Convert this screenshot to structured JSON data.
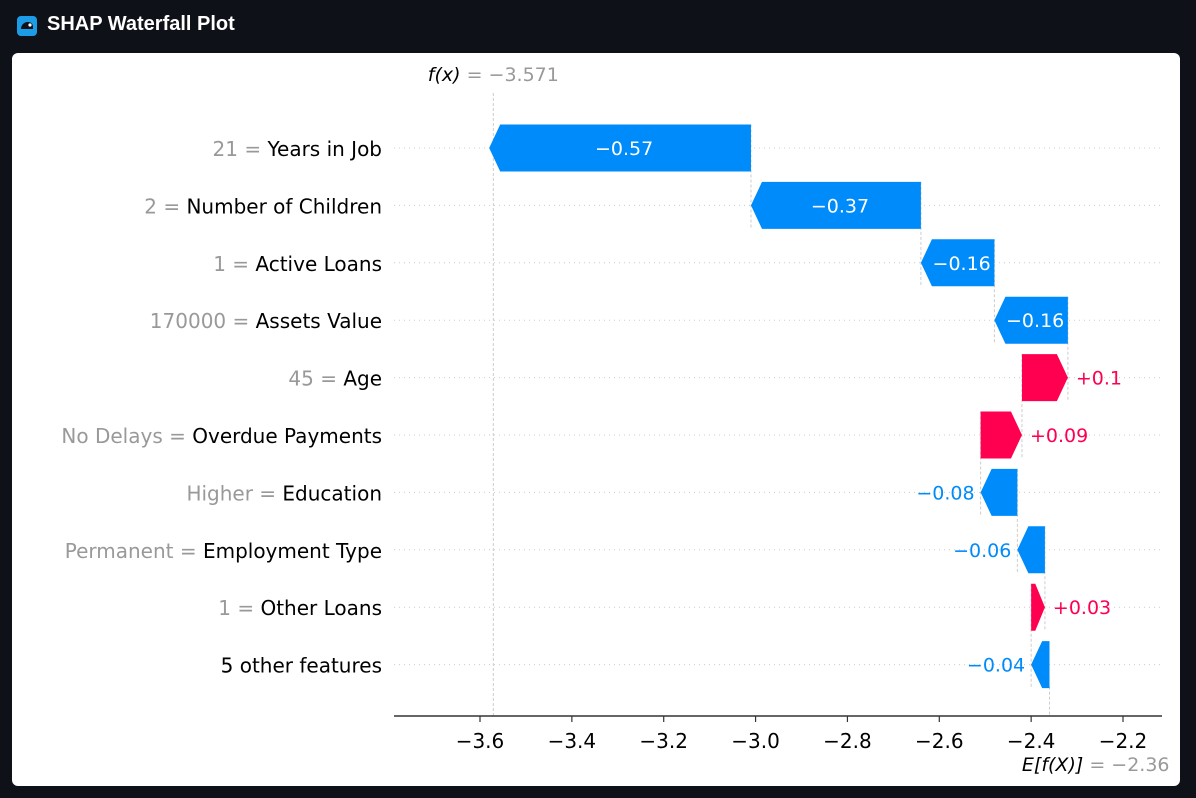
{
  "app": {
    "title": "SHAP Waterfall Plot",
    "icon": "cloud-logo-icon"
  },
  "chart_data": {
    "type": "waterfall",
    "fx": {
      "label": "f(x)",
      "value_text": "= −3.571",
      "value": -3.571
    },
    "base": {
      "label": "E[f(X)]",
      "value_text": "= −2.36",
      "value": -2.36
    },
    "features": [
      {
        "value": "21",
        "name": "Years in Job",
        "shap": -0.57,
        "label": "−0.57"
      },
      {
        "value": "2",
        "name": "Number of Children",
        "shap": -0.37,
        "label": "−0.37"
      },
      {
        "value": "1",
        "name": "Active Loans",
        "shap": -0.16,
        "label": "−0.16"
      },
      {
        "value": "170000",
        "name": "Assets Value",
        "shap": -0.16,
        "label": "−0.16"
      },
      {
        "value": "45",
        "name": "Age",
        "shap": 0.1,
        "label": "+0.1"
      },
      {
        "value": "No Delays",
        "name": "Overdue Payments",
        "shap": 0.09,
        "label": "+0.09"
      },
      {
        "value": "Higher",
        "name": "Education",
        "shap": -0.08,
        "label": "−0.08"
      },
      {
        "value": "Permanent",
        "name": "Employment Type",
        "shap": -0.06,
        "label": "−0.06"
      },
      {
        "value": "1",
        "name": "Other Loans",
        "shap": 0.03,
        "label": "+0.03"
      },
      {
        "value": "",
        "name": "5 other features",
        "shap": -0.04,
        "label": "−0.04"
      }
    ],
    "x_ticks": [
      -3.6,
      -3.4,
      -3.2,
      -3.0,
      -2.8,
      -2.6,
      -2.4,
      -2.2
    ],
    "x_tick_labels": [
      "−3.6",
      "−3.4",
      "−3.2",
      "−3.0",
      "−2.8",
      "−2.6",
      "−2.4",
      "−2.2"
    ],
    "xlim": [
      -3.78,
      -2.13
    ],
    "colors": {
      "negative": "#008bfb",
      "positive": "#ff0051",
      "feature_value": "#999999",
      "feature_name": "#000000",
      "grid": "#cccccc"
    }
  }
}
